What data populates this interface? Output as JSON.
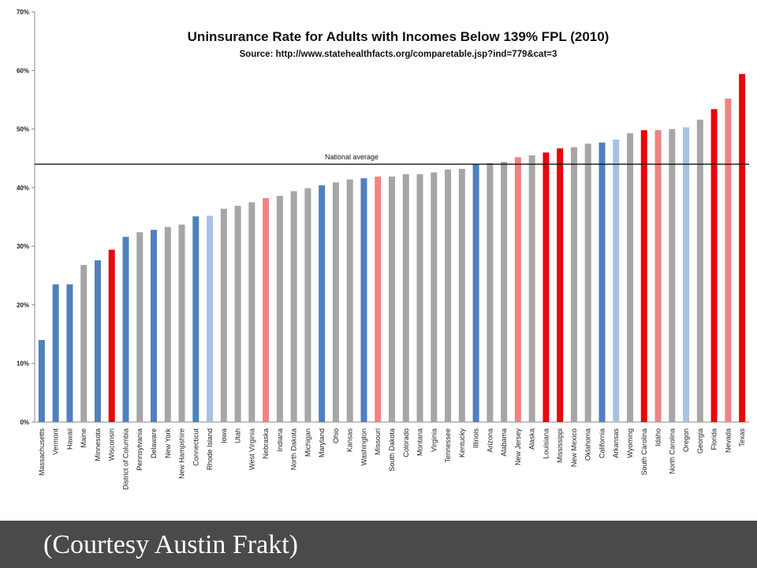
{
  "chart_data": {
    "type": "bar",
    "title": "Uninsurance Rate for Adults with Incomes Below 139% FPL (2010)",
    "subtitle": "Source: http://www.statehealthfacts.org/comparetable.jsp?ind=779&cat=3",
    "xlabel": "",
    "ylabel": "",
    "ylim": [
      0,
      70
    ],
    "yticks": [
      0,
      10,
      20,
      30,
      40,
      50,
      60,
      70
    ],
    "ytick_labels": [
      "0%",
      "10%",
      "20%",
      "30%",
      "40%",
      "50%",
      "60%",
      "70%"
    ],
    "grid": false,
    "legend": "none",
    "reference_line": {
      "label": "National average",
      "value": 44
    },
    "colors": {
      "dark_blue": "#4f81bd",
      "light_blue": "#a7c2e3",
      "gray": "#a6a6a6",
      "light_red": "#f08282",
      "red": "#e8070d"
    },
    "categories": [
      "Massachusetts",
      "Vermont",
      "Hawaii",
      "Maine",
      "Minnesota",
      "Wisconsin",
      "District of Columbia",
      "Pennsylvania",
      "Delaware",
      "New York",
      "New Hampshire",
      "Connecticut",
      "Rhode Island",
      "Iowa",
      "Utah",
      "West Virginia",
      "Nebraska",
      "Indiana",
      "North Dakota",
      "Michigan",
      "Maryland",
      "Ohio",
      "Kansas",
      "Washington",
      "Missouri",
      "South Dakota",
      "Colorado",
      "Montana",
      "Virginia",
      "Tennessee",
      "Kentucky",
      "Illinois",
      "Arizona",
      "Alabama",
      "New Jersey",
      "Alaska",
      "Louisiana",
      "Mississippi",
      "New Mexico",
      "Oklahoma",
      "California",
      "Arkansas",
      "Wyoming",
      "South Carolina",
      "Idaho",
      "North Carolina",
      "Oregon",
      "Georgia",
      "Florida",
      "Nevada",
      "Texas"
    ],
    "values": [
      14,
      23.5,
      23.5,
      26.8,
      27.6,
      29.4,
      31.6,
      32.4,
      32.8,
      33.3,
      33.7,
      35.1,
      35.2,
      36.4,
      36.9,
      37.5,
      38.2,
      38.6,
      39.4,
      39.9,
      40.4,
      40.9,
      41.4,
      41.6,
      41.9,
      41.9,
      42.3,
      42.3,
      42.6,
      43.1,
      43.2,
      44.0,
      44.2,
      44.4,
      45.2,
      45.5,
      46.0,
      46.7,
      46.9,
      47.5,
      47.7,
      48.2,
      49.3,
      49.8,
      49.8,
      50.0,
      50.3,
      51.6,
      53.4,
      55.2,
      59.4
    ],
    "bar_colors": [
      "dark_blue",
      "dark_blue",
      "dark_blue",
      "gray",
      "dark_blue",
      "red",
      "dark_blue",
      "gray",
      "dark_blue",
      "gray",
      "gray",
      "dark_blue",
      "light_blue",
      "gray",
      "gray",
      "gray",
      "light_red",
      "gray",
      "gray",
      "gray",
      "dark_blue",
      "gray",
      "gray",
      "dark_blue",
      "light_red",
      "gray",
      "gray",
      "gray",
      "gray",
      "gray",
      "gray",
      "dark_blue",
      "gray",
      "gray",
      "light_red",
      "gray",
      "red",
      "red",
      "gray",
      "gray",
      "dark_blue",
      "light_blue",
      "gray",
      "red",
      "light_red",
      "gray",
      "light_blue",
      "gray",
      "red",
      "light_red",
      "red"
    ]
  },
  "caption": "(Courtesy Austin Frakt)"
}
